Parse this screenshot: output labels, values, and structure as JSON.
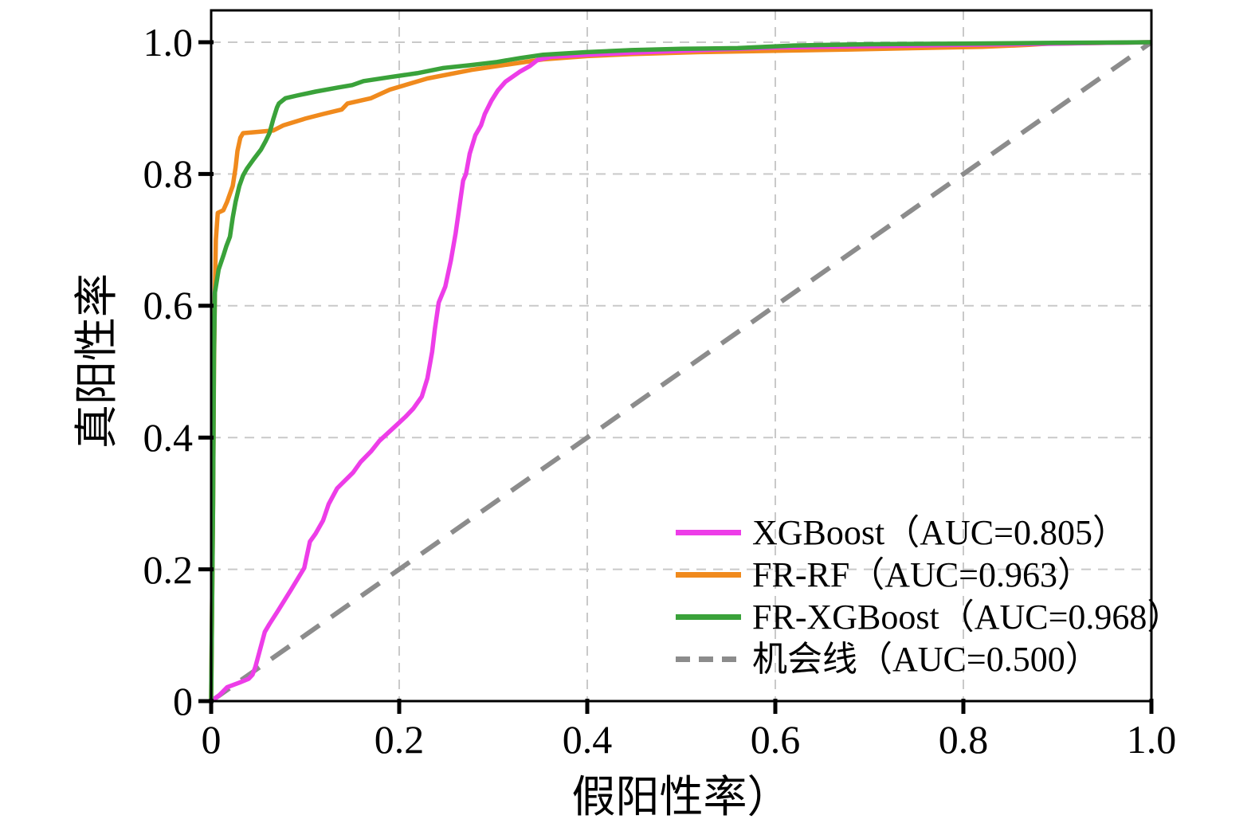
{
  "chart_data": {
    "type": "line",
    "xlabel": "假阳性率）",
    "ylabel": "真阳性率",
    "xlim": [
      0,
      1
    ],
    "ylim": [
      0,
      1.05
    ],
    "x_ticks": [
      0,
      0.2,
      0.4,
      0.6,
      0.8,
      1.0
    ],
    "x_tick_labels": [
      "0",
      "0.2",
      "0.4",
      "0.6",
      "0.8",
      "1.0"
    ],
    "y_ticks": [
      0,
      0.2,
      0.4,
      0.6,
      0.8,
      1.0
    ],
    "y_tick_labels": [
      "0",
      "0.2",
      "0.4",
      "0.6",
      "0.8",
      "1.0"
    ],
    "grid": "dashed",
    "grid_color": "#c9c9c9",
    "axis_color": "#000000",
    "legend_position": "lower right",
    "series": [
      {
        "name": "XGBoost",
        "auc": 0.805,
        "legend": "XGBoost（AUC=0.805）",
        "color": "#ED3DE8",
        "style": "solid",
        "points": [
          [
            0,
            0
          ],
          [
            0.008,
            0.008
          ],
          [
            0.017,
            0.021
          ],
          [
            0.03,
            0.028
          ],
          [
            0.04,
            0.034
          ],
          [
            0.044,
            0.04
          ],
          [
            0.047,
            0.052
          ],
          [
            0.051,
            0.073
          ],
          [
            0.057,
            0.105
          ],
          [
            0.062,
            0.117
          ],
          [
            0.071,
            0.137
          ],
          [
            0.085,
            0.169
          ],
          [
            0.099,
            0.202
          ],
          [
            0.105,
            0.242
          ],
          [
            0.111,
            0.254
          ],
          [
            0.119,
            0.274
          ],
          [
            0.125,
            0.299
          ],
          [
            0.134,
            0.323
          ],
          [
            0.139,
            0.33
          ],
          [
            0.151,
            0.347
          ],
          [
            0.159,
            0.363
          ],
          [
            0.17,
            0.379
          ],
          [
            0.179,
            0.395
          ],
          [
            0.198,
            0.42
          ],
          [
            0.207,
            0.432
          ],
          [
            0.215,
            0.444
          ],
          [
            0.224,
            0.462
          ],
          [
            0.23,
            0.49
          ],
          [
            0.235,
            0.53
          ],
          [
            0.238,
            0.565
          ],
          [
            0.242,
            0.605
          ],
          [
            0.249,
            0.629
          ],
          [
            0.255,
            0.669
          ],
          [
            0.26,
            0.71
          ],
          [
            0.264,
            0.75
          ],
          [
            0.268,
            0.79
          ],
          [
            0.271,
            0.8
          ],
          [
            0.275,
            0.831
          ],
          [
            0.281,
            0.859
          ],
          [
            0.287,
            0.874
          ],
          [
            0.291,
            0.891
          ],
          [
            0.298,
            0.911
          ],
          [
            0.305,
            0.927
          ],
          [
            0.313,
            0.94
          ],
          [
            0.328,
            0.955
          ],
          [
            0.339,
            0.964
          ],
          [
            0.347,
            0.973
          ],
          [
            0.362,
            0.978
          ],
          [
            0.4,
            0.981
          ],
          [
            0.447,
            0.984
          ],
          [
            0.52,
            0.988
          ],
          [
            0.6,
            0.992
          ],
          [
            0.7,
            0.994
          ],
          [
            0.8,
            0.996
          ],
          [
            0.9,
            0.998
          ],
          [
            1,
            1
          ]
        ]
      },
      {
        "name": "FR-RF",
        "auc": 0.963,
        "legend": "FR-RF（AUC=0.963）",
        "color": "#F08A1D",
        "style": "solid",
        "points": [
          [
            0,
            0
          ],
          [
            0.002,
            0.3
          ],
          [
            0.003,
            0.5
          ],
          [
            0.004,
            0.62
          ],
          [
            0.005,
            0.7
          ],
          [
            0.007,
            0.741
          ],
          [
            0.013,
            0.745
          ],
          [
            0.017,
            0.758
          ],
          [
            0.023,
            0.782
          ],
          [
            0.026,
            0.81
          ],
          [
            0.028,
            0.835
          ],
          [
            0.031,
            0.855
          ],
          [
            0.034,
            0.862
          ],
          [
            0.05,
            0.864
          ],
          [
            0.066,
            0.866
          ],
          [
            0.077,
            0.874
          ],
          [
            0.1,
            0.884
          ],
          [
            0.119,
            0.891
          ],
          [
            0.139,
            0.898
          ],
          [
            0.145,
            0.907
          ],
          [
            0.17,
            0.915
          ],
          [
            0.19,
            0.928
          ],
          [
            0.23,
            0.945
          ],
          [
            0.277,
            0.958
          ],
          [
            0.31,
            0.965
          ],
          [
            0.353,
            0.974
          ],
          [
            0.4,
            0.979
          ],
          [
            0.447,
            0.982
          ],
          [
            0.52,
            0.985
          ],
          [
            0.6,
            0.987
          ],
          [
            0.68,
            0.989
          ],
          [
            0.75,
            0.991
          ],
          [
            0.82,
            0.993
          ],
          [
            0.87,
            0.996
          ],
          [
            0.89,
            0.998
          ],
          [
            1,
            1
          ]
        ]
      },
      {
        "name": "FR-XGBoost",
        "auc": 0.968,
        "legend": "FR-XGBoost（AUC=0.968）",
        "color": "#3AA23A",
        "style": "solid",
        "points": [
          [
            0,
            0
          ],
          [
            0.002,
            0.3
          ],
          [
            0.003,
            0.52
          ],
          [
            0.004,
            0.62
          ],
          [
            0.008,
            0.655
          ],
          [
            0.013,
            0.676
          ],
          [
            0.016,
            0.69
          ],
          [
            0.02,
            0.705
          ],
          [
            0.023,
            0.734
          ],
          [
            0.026,
            0.758
          ],
          [
            0.03,
            0.782
          ],
          [
            0.034,
            0.798
          ],
          [
            0.038,
            0.808
          ],
          [
            0.045,
            0.822
          ],
          [
            0.053,
            0.837
          ],
          [
            0.058,
            0.85
          ],
          [
            0.062,
            0.862
          ],
          [
            0.066,
            0.883
          ],
          [
            0.07,
            0.901
          ],
          [
            0.072,
            0.907
          ],
          [
            0.079,
            0.915
          ],
          [
            0.091,
            0.919
          ],
          [
            0.111,
            0.925
          ],
          [
            0.134,
            0.931
          ],
          [
            0.15,
            0.935
          ],
          [
            0.162,
            0.941
          ],
          [
            0.19,
            0.947
          ],
          [
            0.219,
            0.953
          ],
          [
            0.247,
            0.961
          ],
          [
            0.275,
            0.965
          ],
          [
            0.304,
            0.97
          ],
          [
            0.329,
            0.976
          ],
          [
            0.353,
            0.981
          ],
          [
            0.4,
            0.985
          ],
          [
            0.447,
            0.988
          ],
          [
            0.5,
            0.99
          ],
          [
            0.56,
            0.991
          ],
          [
            0.62,
            0.995
          ],
          [
            0.66,
            0.996
          ],
          [
            0.7,
            0.997
          ],
          [
            0.8,
            0.998
          ],
          [
            0.9,
            0.999
          ],
          [
            1,
            1
          ]
        ]
      },
      {
        "name": "机会线",
        "auc": 0.5,
        "legend": "机会线（AUC=0.500）",
        "color": "#8C8C8C",
        "style": "dashed",
        "points": [
          [
            0,
            0
          ],
          [
            1,
            1
          ]
        ]
      }
    ]
  }
}
